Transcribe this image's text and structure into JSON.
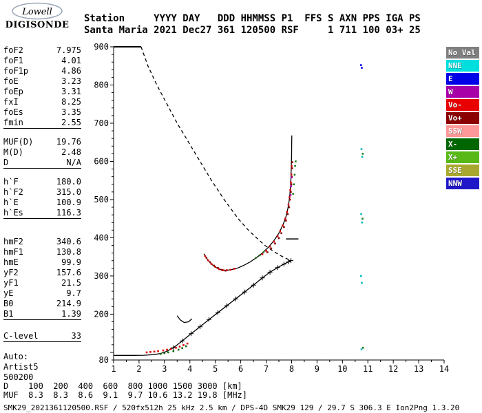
{
  "logo": {
    "script_text": "Lowell",
    "brand_text": "DIGISONDE"
  },
  "header": {
    "line1": "Station     YYYY DAY   DDD HHMMSS P1  FFS S AXN PPS IGA PS",
    "line2": "Santa Maria 2021 Dec27 361 120500 RSF     1 711 100 03+ 25"
  },
  "params": {
    "groups": [
      {
        "gap": 0,
        "rows": [
          [
            "foF2",
            "7.975"
          ],
          [
            "foF1",
            "4.01"
          ],
          [
            "foF1p",
            "4.86"
          ],
          [
            "foE",
            "3.23"
          ],
          [
            "foEp",
            "3.31"
          ],
          [
            "fxI",
            "8.25"
          ],
          [
            "foEs",
            "3.35"
          ],
          [
            "fmin",
            "2.55"
          ]
        ]
      },
      {
        "gap": 12,
        "rows": [
          [
            "MUF(D)",
            "19.76"
          ],
          [
            "M(D)",
            "2.48"
          ],
          [
            "D",
            "N/A"
          ]
        ]
      },
      {
        "gap": 12,
        "rows": [
          [
            "h`F",
            "180.0"
          ],
          [
            "h`F2",
            "315.0"
          ],
          [
            "h`E",
            "100.9"
          ],
          [
            "h`Es",
            "116.3"
          ]
        ]
      },
      {
        "gap": 26,
        "rows": [
          [
            "hmF2",
            "340.6"
          ],
          [
            "hmF1",
            "130.8"
          ],
          [
            "hmE",
            "99.9"
          ],
          [
            "yF2",
            "157.6"
          ],
          [
            "yF1",
            "21.5"
          ],
          [
            "yE",
            "9.7"
          ],
          [
            "B0",
            "214.9"
          ],
          [
            "B1",
            "1.39"
          ]
        ]
      },
      {
        "gap": 16,
        "rows": [
          [
            "C-level",
            "33"
          ]
        ]
      }
    ],
    "footer": [
      "Auto:",
      "Artist5",
      "500200"
    ]
  },
  "legend": {
    "items": [
      {
        "label": "No Val",
        "color": "#7f7f7f"
      },
      {
        "label": "NNE",
        "color": "#00dede"
      },
      {
        "label": "E",
        "color": "#0000e8"
      },
      {
        "label": "W",
        "color": "#a800a8"
      },
      {
        "label": "Vo-",
        "color": "#e80000"
      },
      {
        "label": "Vo+",
        "color": "#8b0000"
      },
      {
        "label": "SSW",
        "color": "#ff9898"
      },
      {
        "label": "X-",
        "color": "#006600"
      },
      {
        "label": "X+",
        "color": "#58b818"
      },
      {
        "label": "SSE",
        "color": "#a8a830"
      },
      {
        "label": "NNW",
        "color": "#2018c8"
      }
    ]
  },
  "muf_table": {
    "row1_label": "D",
    "row2_label": "MUF",
    "distances": [
      "100",
      "200",
      "400",
      "600",
      "800",
      "1000",
      "1500",
      "3000"
    ],
    "muf_values": [
      "8.3",
      "8.3",
      "8.6",
      "9.1",
      "9.7",
      "10.6",
      "13.2",
      "19.8"
    ],
    "row1_unit": "[km]",
    "row2_unit": "[MHz]"
  },
  "status_line": "SMK29_2021361120500.RSF / 520fx512h 25 kHz 2.5 km / DPS-4D SMK29 129 / 29.7 S 306.3 E Ion2Png 1.3.20",
  "chart_data": {
    "type": "line",
    "x_unit": "MHz",
    "y_unit": "km",
    "xlim": [
      1,
      14
    ],
    "ylim": [
      80,
      900
    ],
    "x_ticks": [
      1,
      2,
      3,
      4,
      5,
      6,
      7,
      8,
      9,
      10,
      11,
      12,
      13,
      14
    ],
    "y_tick_labels": [
      900,
      800,
      700,
      600,
      500,
      400,
      300,
      200,
      80
    ],
    "grid": false,
    "series": [
      {
        "name": "top-boundary-segment",
        "style": "solid",
        "width": 2,
        "points": [
          [
            1.0,
            900
          ],
          [
            2.08,
            900
          ]
        ]
      },
      {
        "name": "topside-profile-dashed",
        "style": "dashed",
        "width": 1.3,
        "points": [
          [
            2.08,
            900
          ],
          [
            2.35,
            850
          ],
          [
            2.7,
            800
          ],
          [
            3.1,
            750
          ],
          [
            3.5,
            700
          ],
          [
            3.95,
            650
          ],
          [
            4.4,
            600
          ],
          [
            4.85,
            550
          ],
          [
            5.35,
            500
          ],
          [
            5.9,
            450
          ],
          [
            6.3,
            420
          ],
          [
            6.62,
            400
          ],
          [
            6.95,
            380
          ],
          [
            7.3,
            364
          ],
          [
            7.55,
            354
          ],
          [
            7.75,
            347
          ],
          [
            7.9,
            342.5
          ],
          [
            7.975,
            340.6
          ]
        ]
      },
      {
        "name": "electron-density-profile",
        "style": "solid",
        "width": 1.3,
        "marker": "plus",
        "markers_from": 7,
        "points": [
          [
            1.0,
            92
          ],
          [
            1.4,
            92
          ],
          [
            1.8,
            92
          ],
          [
            2.2,
            92.5
          ],
          [
            2.55,
            94
          ],
          [
            2.85,
            97
          ],
          [
            3.1,
            103
          ],
          [
            3.35,
            112
          ],
          [
            3.7,
            130
          ],
          [
            4.05,
            149
          ],
          [
            4.4,
            167
          ],
          [
            4.75,
            186
          ],
          [
            5.1,
            204
          ],
          [
            5.45,
            222
          ],
          [
            5.8,
            240
          ],
          [
            6.15,
            258
          ],
          [
            6.5,
            276
          ],
          [
            6.85,
            295
          ],
          [
            7.15,
            310
          ],
          [
            7.45,
            322
          ],
          [
            7.7,
            331
          ],
          [
            7.88,
            337
          ],
          [
            7.975,
            340.6
          ]
        ]
      },
      {
        "name": "peak-uncertainty-bar",
        "style": "solid",
        "width": 1.5,
        "points": [
          [
            7.78,
            397
          ],
          [
            8.27,
            397
          ]
        ]
      },
      {
        "name": "f2-virtual-height-trace",
        "style": "solid",
        "width": 1.3,
        "points": [
          [
            4.55,
            358
          ],
          [
            4.7,
            342
          ],
          [
            4.85,
            331
          ],
          [
            5.0,
            323
          ],
          [
            5.2,
            317
          ],
          [
            5.4,
            315
          ],
          [
            5.6,
            316
          ],
          [
            5.85,
            320
          ],
          [
            6.1,
            327
          ],
          [
            6.35,
            336
          ],
          [
            6.6,
            347
          ],
          [
            6.85,
            360
          ],
          [
            7.1,
            376
          ],
          [
            7.3,
            392
          ],
          [
            7.5,
            412
          ],
          [
            7.65,
            432
          ],
          [
            7.77,
            453
          ],
          [
            7.85,
            475
          ],
          [
            7.9,
            495
          ],
          [
            7.94,
            518
          ],
          [
            7.965,
            540
          ],
          [
            7.98,
            565
          ],
          [
            7.99,
            590
          ],
          [
            8.0,
            618
          ],
          [
            8.005,
            645
          ],
          [
            8.01,
            668
          ]
        ]
      },
      {
        "name": "f1-virtual-height-trace",
        "style": "solid",
        "width": 1.3,
        "points": [
          [
            3.5,
            196
          ],
          [
            3.62,
            185
          ],
          [
            3.78,
            178
          ],
          [
            3.95,
            180
          ],
          [
            4.08,
            188
          ]
        ]
      }
    ],
    "echoes": [
      {
        "name": "es-layer-o-mode",
        "color": "#dd0000",
        "points": [
          [
            2.3,
            100
          ],
          [
            2.45,
            101
          ],
          [
            2.6,
            102
          ],
          [
            2.75,
            103
          ],
          [
            2.95,
            105
          ],
          [
            3.1,
            107
          ],
          [
            3.25,
            109
          ],
          [
            3.45,
            112
          ],
          [
            3.6,
            115
          ],
          [
            3.75,
            119
          ],
          [
            3.9,
            123
          ]
        ]
      },
      {
        "name": "es-layer-x-mode",
        "color": "#006600",
        "points": [
          [
            2.85,
            96
          ],
          [
            3.0,
            98
          ],
          [
            3.15,
            100
          ],
          [
            3.35,
            103
          ],
          [
            3.55,
            107
          ],
          [
            3.7,
            111
          ],
          [
            3.85,
            116
          ]
        ]
      },
      {
        "name": "f-region-dip-o-mode",
        "color": "#dd0000",
        "points": [
          [
            4.6,
            352
          ],
          [
            4.72,
            341
          ],
          [
            4.85,
            331
          ],
          [
            5.0,
            324
          ],
          [
            5.15,
            318
          ],
          [
            5.3,
            315
          ],
          [
            5.45,
            315
          ],
          [
            5.6,
            316
          ],
          [
            5.75,
            319
          ]
        ]
      },
      {
        "name": "f-region-dip-x-mode",
        "color": "#8b0000",
        "points": [
          [
            4.65,
            348
          ],
          [
            4.8,
            336
          ],
          [
            4.95,
            327
          ],
          [
            5.1,
            321
          ],
          [
            5.25,
            316
          ],
          [
            5.4,
            314
          ]
        ]
      },
      {
        "name": "f2-rise-o-mode",
        "color": "#dd0000",
        "points": [
          [
            6.85,
            357
          ],
          [
            7.0,
            366
          ],
          [
            7.15,
            377
          ],
          [
            7.3,
            390
          ],
          [
            7.45,
            404
          ],
          [
            7.55,
            417
          ],
          [
            7.65,
            432
          ],
          [
            7.75,
            450
          ],
          [
            7.82,
            468
          ],
          [
            7.88,
            487
          ],
          [
            7.92,
            506
          ],
          [
            7.95,
            525
          ],
          [
            7.97,
            545
          ],
          [
            7.99,
            566
          ],
          [
            8.0,
            588
          ]
        ]
      },
      {
        "name": "f2-rise-dark",
        "color": "#8b0000",
        "points": [
          [
            7.05,
            362
          ],
          [
            7.2,
            372
          ],
          [
            7.35,
            385
          ],
          [
            7.5,
            399
          ],
          [
            7.6,
            412
          ],
          [
            7.7,
            428
          ],
          [
            7.78,
            445
          ],
          [
            7.85,
            462
          ],
          [
            7.9,
            480
          ],
          [
            7.94,
            500
          ],
          [
            7.97,
            520
          ],
          [
            7.99,
            540
          ],
          [
            8.01,
            560
          ],
          [
            8.02,
            582
          ],
          [
            8.03,
            598
          ]
        ]
      },
      {
        "name": "f2-rise-magenta",
        "color": "#a800a8",
        "points": [
          [
            7.96,
            512
          ],
          [
            7.98,
            535
          ],
          [
            8.0,
            558
          ]
        ]
      },
      {
        "name": "x-mode-green",
        "color": "#1f7a1f",
        "points": [
          [
            6.6,
            348
          ],
          [
            6.75,
            354
          ],
          [
            6.9,
            362
          ],
          [
            8.06,
            515
          ],
          [
            8.09,
            540
          ],
          [
            8.12,
            565
          ],
          [
            8.14,
            588
          ],
          [
            8.16,
            600
          ]
        ]
      },
      {
        "name": "stray-echoes-cyan",
        "color": "#00bbbb",
        "points": [
          [
            10.75,
            632
          ],
          [
            10.78,
            612
          ],
          [
            10.74,
            462
          ],
          [
            10.77,
            440
          ],
          [
            10.73,
            300
          ],
          [
            10.76,
            282
          ],
          [
            10.75,
            108
          ]
        ]
      },
      {
        "name": "stray-echoes-green",
        "color": "#1f7a1f",
        "points": [
          [
            10.8,
            620
          ],
          [
            10.79,
            450
          ],
          [
            10.81,
            112
          ]
        ]
      },
      {
        "name": "stray-echoes-blue",
        "color": "#0000e8",
        "points": [
          [
            10.73,
            852
          ],
          [
            10.76,
            845
          ]
        ]
      }
    ]
  }
}
